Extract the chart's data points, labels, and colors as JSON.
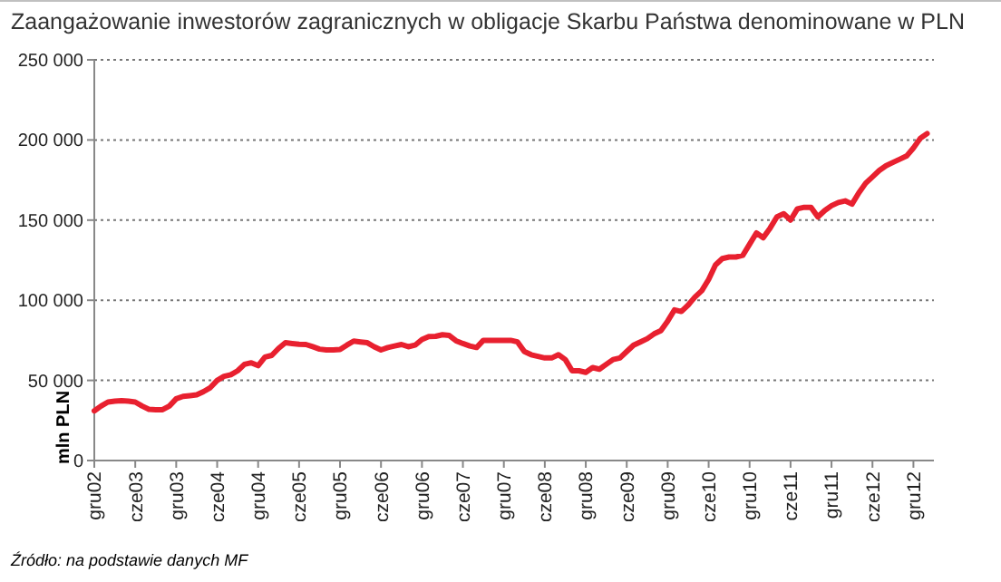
{
  "chart_data": {
    "type": "line",
    "title": "Zaangażowanie inwestorów zagranicznych w obligacje Skarbu Państwa denominowane w PLN",
    "ylabel": "mln PLN",
    "annotations": [
      "Źródło: na podstawie danych MF"
    ],
    "categories": [
      "gru02",
      null,
      null,
      null,
      null,
      null,
      "cze03",
      null,
      null,
      null,
      null,
      null,
      "gru03",
      null,
      null,
      null,
      null,
      null,
      "cze04",
      null,
      null,
      null,
      null,
      null,
      "gru04",
      null,
      null,
      null,
      null,
      null,
      "cze05",
      null,
      null,
      null,
      null,
      null,
      "gru05",
      null,
      null,
      null,
      null,
      null,
      "cze06",
      null,
      null,
      null,
      null,
      null,
      "gru06",
      null,
      null,
      null,
      null,
      null,
      "cze07",
      null,
      null,
      null,
      null,
      null,
      "gru07",
      null,
      null,
      null,
      null,
      null,
      "cze08",
      null,
      null,
      null,
      null,
      null,
      "gru08",
      null,
      null,
      null,
      null,
      null,
      "cze09",
      null,
      null,
      null,
      null,
      null,
      "gru09",
      null,
      null,
      null,
      null,
      null,
      "cze10",
      null,
      null,
      null,
      null,
      null,
      "gru10",
      null,
      null,
      null,
      null,
      null,
      "cze11",
      null,
      null,
      null,
      null,
      null,
      "gru11",
      null,
      null,
      null,
      null,
      null,
      "cze12",
      null,
      null,
      null,
      null,
      null,
      "gru12",
      null,
      null
    ],
    "series": [
      {
        "color": "#e8202f",
        "values": [
          31000,
          34000,
          36500,
          37000,
          37300,
          37000,
          36500,
          34000,
          32000,
          31700,
          31700,
          34000,
          38500,
          40000,
          40500,
          41000,
          43000,
          45500,
          50000,
          52500,
          53500,
          56000,
          60000,
          61000,
          59200,
          64500,
          65600,
          70000,
          73500,
          73000,
          72500,
          72400,
          71000,
          69500,
          69000,
          69000,
          69300,
          72000,
          74500,
          74000,
          73500,
          71000,
          69000,
          70500,
          71500,
          72400,
          71000,
          72000,
          75500,
          77300,
          77500,
          78500,
          78000,
          74700,
          73000,
          71500,
          70500,
          75000,
          75000,
          75000,
          75000,
          75000,
          74000,
          68000,
          66000,
          65000,
          64000,
          64000,
          66000,
          63000,
          56000,
          56000,
          55000,
          58000,
          57000,
          60000,
          63000,
          64000,
          68000,
          72000,
          74000,
          76000,
          79000,
          81000,
          87000,
          94000,
          93000,
          97000,
          102000,
          106000,
          113000,
          122000,
          126000,
          127000,
          127000,
          128000,
          135000,
          142000,
          139000,
          145000,
          152000,
          154000,
          150000,
          157000,
          158000,
          158000,
          152000,
          156000,
          159000,
          161000,
          162000,
          160000,
          167000,
          173000,
          177000,
          181000,
          184000,
          186000,
          188000,
          190000,
          195000,
          201000,
          204000
        ]
      }
    ],
    "ylim": [
      0,
      250000
    ],
    "yticks": [
      0,
      {
        "value": 50000,
        "label": "50 000"
      },
      {
        "value": 100000,
        "label": "100 000"
      },
      {
        "value": 150000,
        "label": "150 000"
      },
      {
        "value": 200000,
        "label": "200 000"
      },
      {
        "value": 250000,
        "label": "250 000"
      }
    ],
    "grid": "y",
    "line_style": "solid"
  }
}
